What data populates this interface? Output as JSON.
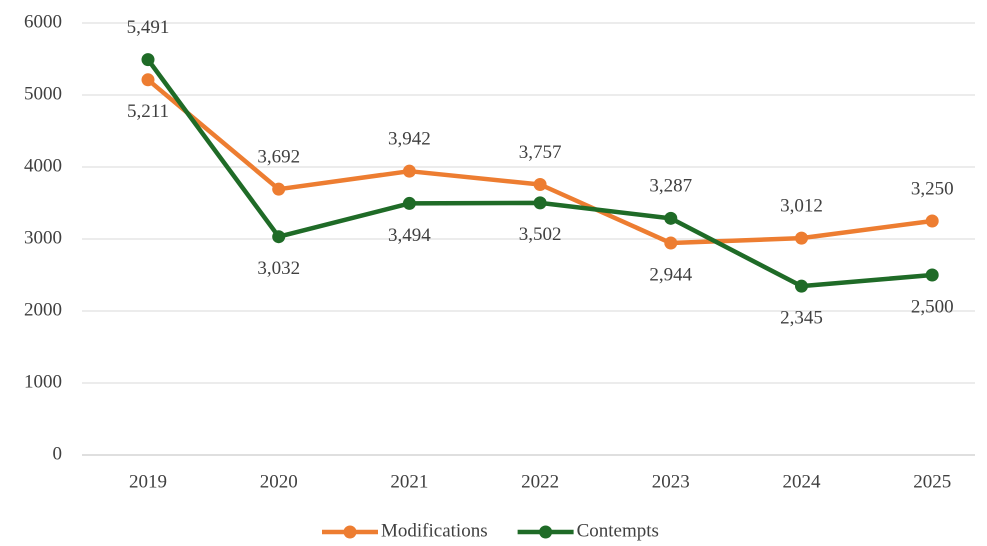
{
  "chart_data": {
    "type": "line",
    "categories": [
      "2019",
      "2020",
      "2021",
      "2022",
      "2023",
      "2024",
      "2025"
    ],
    "series": [
      {
        "name": "Modifications",
        "color": "#ed7d31",
        "values": [
          5211,
          3692,
          3942,
          3757,
          2944,
          3012,
          3250
        ],
        "value_labels": [
          "5,211",
          "3,692",
          "3,942",
          "3,757",
          "2,944",
          "3,012",
          "3,250"
        ]
      },
      {
        "name": "Contempts",
        "color": "#1f6b27",
        "values": [
          5491,
          3032,
          3494,
          3502,
          3287,
          2345,
          2500
        ],
        "value_labels": [
          "5,491",
          "3,032",
          "3,494",
          "3,502",
          "3,287",
          "2,345",
          "2,500"
        ]
      }
    ],
    "ylim": [
      0,
      6000
    ],
    "yticks": [
      0,
      1000,
      2000,
      3000,
      4000,
      5000,
      6000
    ],
    "grid": true,
    "legend": "bottom"
  }
}
